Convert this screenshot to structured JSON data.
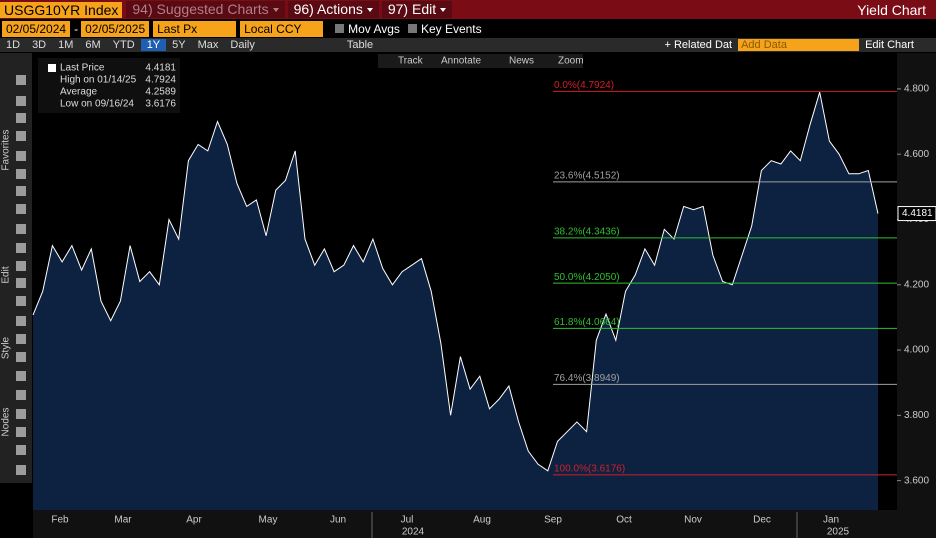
{
  "toolbar": {
    "ticker": "USGG10YR Index",
    "menus": [
      "94) Suggested Charts",
      "96) Actions",
      "97) Edit"
    ],
    "right_title": "Yield Chart",
    "start_date": "02/05/2024",
    "end_date": "02/05/2025",
    "field": "Last Px",
    "currency": "Local CCY",
    "toggles": [
      "Mov Avgs",
      "Key Events"
    ],
    "periods": [
      "1D",
      "3D",
      "1M",
      "6M",
      "YTD",
      "1Y",
      "5Y",
      "Max"
    ],
    "selected_period": "1Y",
    "frequency": "Daily",
    "table_button": "Table",
    "related": "+ Related Dat",
    "add_data": "Add Data",
    "edit_chart": "Edit Chart",
    "annotation_tools": [
      "Track",
      "Annotate",
      "News",
      "Zoom"
    ],
    "side_labels": [
      "Favorites",
      "Edit",
      "Style",
      "Nodes"
    ]
  },
  "chart_data": {
    "type": "area",
    "series": [
      {
        "name": "Last Price",
        "color": "#ffffff",
        "fill": "#0d2240",
        "values": [
          4.107,
          4.18,
          4.32,
          4.27,
          4.32,
          4.245,
          4.31,
          4.15,
          4.09,
          4.15,
          4.32,
          4.21,
          4.24,
          4.2,
          4.4,
          4.34,
          4.58,
          4.63,
          4.61,
          4.7,
          4.63,
          4.51,
          4.44,
          4.46,
          4.35,
          4.49,
          4.52,
          4.61,
          4.34,
          4.26,
          4.31,
          4.24,
          4.26,
          4.32,
          4.27,
          4.34,
          4.25,
          4.2,
          4.24,
          4.26,
          4.28,
          4.18,
          4.02,
          3.8,
          3.98,
          3.88,
          3.92,
          3.82,
          3.85,
          3.89,
          3.78,
          3.69,
          3.65,
          3.63,
          3.72,
          3.75,
          3.78,
          3.75,
          4.03,
          4.11,
          4.03,
          4.18,
          4.23,
          4.31,
          4.26,
          4.37,
          4.34,
          4.44,
          4.43,
          4.44,
          4.29,
          4.21,
          4.2,
          4.29,
          4.38,
          4.55,
          4.58,
          4.57,
          4.61,
          4.58,
          4.69,
          4.79,
          4.64,
          4.6,
          4.54,
          4.54,
          4.55,
          4.4181
        ]
      }
    ],
    "ylim": [
      3.51,
      4.91
    ],
    "yticks": [
      {
        "value": 3.6,
        "label": "3.600"
      },
      {
        "value": 3.8,
        "label": "3.800"
      },
      {
        "value": 4.0,
        "label": "4.000"
      },
      {
        "value": 4.2,
        "label": "4.200"
      },
      {
        "value": 4.4,
        "label": "4.400"
      },
      {
        "value": 4.6,
        "label": "4.600"
      },
      {
        "value": 4.8,
        "label": "4.800"
      }
    ],
    "grid": false,
    "x_labels": [
      "Feb",
      "Mar",
      "Apr",
      "May",
      "Jun",
      "Jul",
      "Aug",
      "Sep",
      "Oct",
      "Nov",
      "Dec",
      "Jan"
    ],
    "years": [
      "2024",
      "2025"
    ],
    "last_value": 4.4181,
    "legend": [
      {
        "label": "Last Price",
        "value": 4.4181
      },
      {
        "label": "High on 01/14/25",
        "value": 4.7924
      },
      {
        "label": "Average",
        "value": 4.2589
      },
      {
        "label": "Low on 09/16/24",
        "value": 3.6176
      }
    ],
    "fib_levels": [
      {
        "label": "0.0%(4.7924)",
        "value": 4.7924,
        "color": "#d0202a"
      },
      {
        "label": "23.6%(4.5152)",
        "value": 4.5152,
        "color": "#a0a0a0"
      },
      {
        "label": "38.2%(4.3436)",
        "value": 4.3436,
        "color": "#2fbf2f"
      },
      {
        "label": "50.0%(4.2050)",
        "value": 4.205,
        "color": "#2fbf2f"
      },
      {
        "label": "61.8%(4.0664)",
        "value": 4.0664,
        "color": "#2fbf2f"
      },
      {
        "label": "76.4%(3.8949)",
        "value": 3.8949,
        "color": "#a0a0a0"
      },
      {
        "label": "100.0%(3.6176)",
        "value": 3.6176,
        "color": "#d0202a"
      }
    ]
  }
}
